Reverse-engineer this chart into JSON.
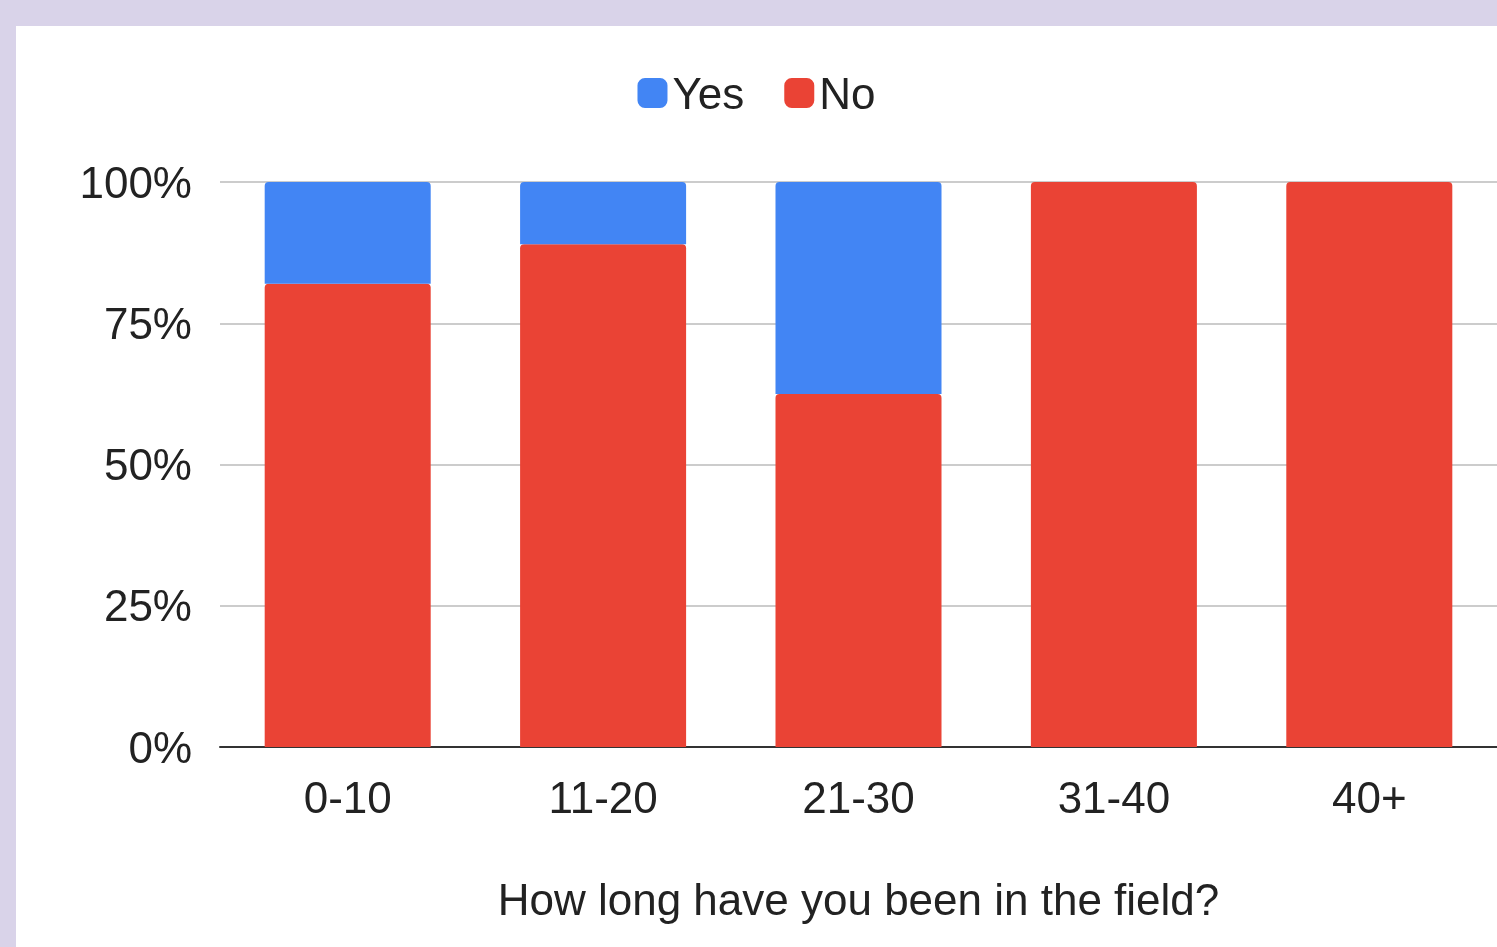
{
  "chart_data": {
    "type": "bar",
    "xlabel": "How long have you been in the field?",
    "categories": [
      "0-10",
      "11-20",
      "21-30",
      "31-40",
      "40+"
    ],
    "stacked": true,
    "series": [
      {
        "name": "No",
        "color": "#ea4335",
        "values": [
          82,
          89,
          62.5,
          100,
          100
        ]
      },
      {
        "name": "Yes",
        "color": "#4285f4",
        "values": [
          18,
          11,
          37.5,
          0,
          0
        ]
      }
    ],
    "ylim": [
      0,
      100
    ],
    "yticks": [
      {
        "value": 0,
        "label": "0%"
      },
      {
        "value": 25,
        "label": "25%"
      },
      {
        "value": 50,
        "label": "50%"
      },
      {
        "value": 75,
        "label": "75%"
      },
      {
        "value": 100,
        "label": "100%"
      }
    ],
    "grid": "y",
    "legend": "top"
  }
}
